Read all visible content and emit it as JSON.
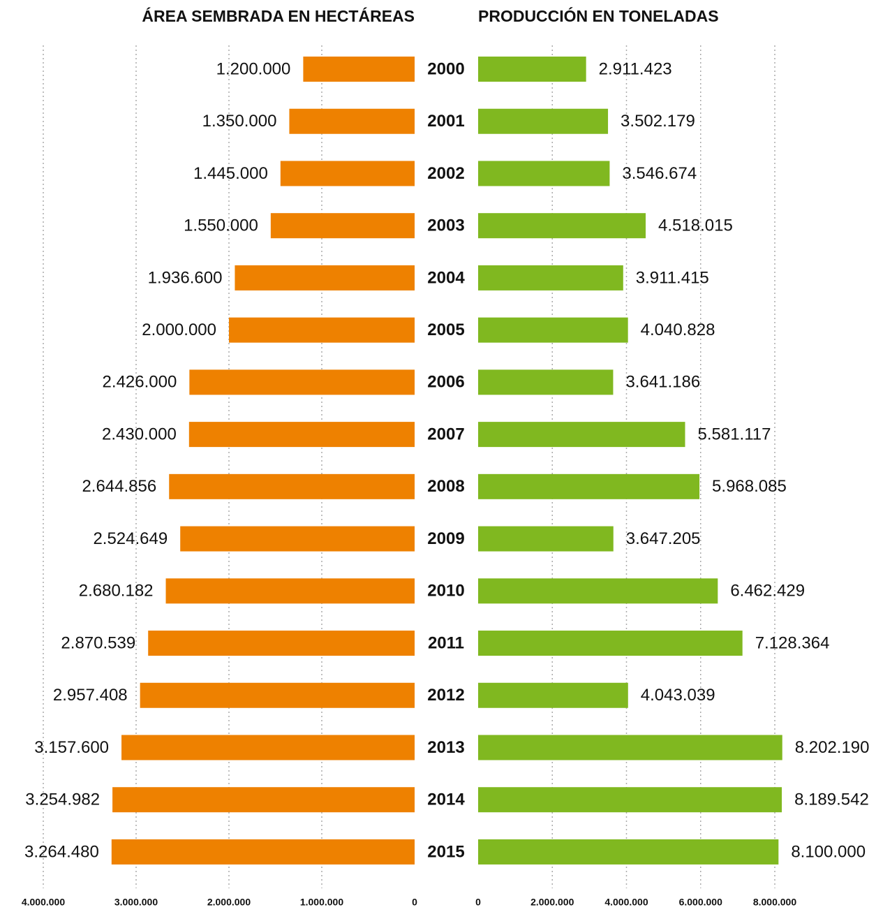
{
  "chart_data": [
    {
      "type": "bar",
      "title": "ÁREA SEMBRADA EN HECTÁREAS",
      "orientation": "horizontal",
      "xaxis_reversed": true,
      "color": "#ee8100",
      "grid": true,
      "categories": [
        "2000",
        "2001",
        "2002",
        "2003",
        "2004",
        "2005",
        "2006",
        "2007",
        "2008",
        "2009",
        "2010",
        "2011",
        "2012",
        "2013",
        "2014",
        "2015"
      ],
      "values": [
        1200000,
        1350000,
        1445000,
        1550000,
        1936600,
        2000000,
        2426000,
        2430000,
        2644856,
        2524649,
        2680182,
        2870539,
        2957408,
        3157600,
        3254982,
        3264480
      ],
      "value_labels": [
        "1.200.000",
        "1.350.000",
        "1.445.000",
        "1.550.000",
        "1.936.600",
        "2.000.000",
        "2.426.000",
        "2.430.000",
        "2.644.856",
        "2.524.649",
        "2.680.182",
        "2.870.539",
        "2.957.408",
        "3.157.600",
        "3.254.982",
        "3.264.480"
      ],
      "xlim": [
        0,
        4000000
      ],
      "xticks": [
        {
          "value": 4000000,
          "label": "4.000.000"
        },
        {
          "value": 3000000,
          "label": "3.000.000"
        },
        {
          "value": 2000000,
          "label": "2.000.000"
        },
        {
          "value": 1000000,
          "label": "1.000.000"
        },
        0
      ]
    },
    {
      "type": "bar",
      "title": "PRODUCCIÓN EN TONELADAS",
      "orientation": "horizontal",
      "xaxis_reversed": false,
      "color": "#80b820",
      "grid": true,
      "values": [
        2911423,
        3502179,
        3546674,
        4518015,
        3911415,
        4040828,
        3641186,
        5581117,
        5968085,
        3647205,
        6462429,
        7128364,
        4043039,
        8202190,
        8189542,
        8100000
      ],
      "value_labels": [
        "2.911.423",
        "3.502.179",
        "3.546.674",
        "4.518.015",
        "3.911.415",
        "4.040.828",
        "3.641.186",
        "5.581.117",
        "5.968.085",
        "3.647.205",
        "6.462.429",
        "7.128.364",
        "4.043.039",
        "8.202.190",
        "8.189.542",
        "8.100.000"
      ],
      "xlim": [
        0,
        8000000
      ],
      "xticks": [
        0,
        {
          "value": 2000000,
          "label": "2.000.000"
        },
        {
          "value": 4000000,
          "label": "4.000.000"
        },
        {
          "value": 6000000,
          "label": "6.000.000"
        },
        {
          "value": 8000000,
          "label": "8.000.000"
        }
      ]
    }
  ]
}
